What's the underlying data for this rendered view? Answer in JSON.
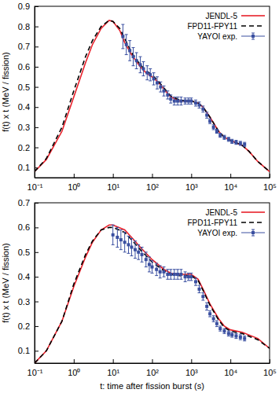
{
  "chart_data": [
    {
      "type": "line",
      "log": "x",
      "legend": "upper right",
      "y_label": "f(t) x t (MeV / fission)",
      "xlim": [
        0.1,
        100000
      ],
      "ylim": [
        0.05,
        0.9
      ],
      "xticks": [
        {
          "value": 0.1,
          "label": "10⁻¹"
        },
        {
          "value": 1,
          "label": "10⁰"
        },
        {
          "value": 10,
          "label": "10¹"
        },
        {
          "value": 100,
          "label": "10²"
        },
        {
          "value": 1000,
          "label": "10³"
        },
        {
          "value": 10000,
          "label": "10⁴"
        },
        {
          "value": 100000,
          "label": "10⁵"
        }
      ],
      "yticks": [
        0.1,
        0.2,
        0.3,
        0.4,
        0.5,
        0.6,
        0.7,
        0.8,
        0.9
      ],
      "series": [
        {
          "name": "JENDL-5",
          "type": "line",
          "color": "#e8202a",
          "line_style": "solid",
          "x": [
            0.1,
            0.2,
            0.5,
            1,
            2,
            3,
            5,
            8,
            10,
            15,
            20,
            30,
            50,
            70,
            100,
            150,
            200,
            300,
            500,
            700,
            1000,
            1500,
            2000,
            3000,
            5000,
            7000,
            10000,
            20000,
            30000,
            50000,
            100000
          ],
          "values": [
            0.08,
            0.14,
            0.28,
            0.45,
            0.62,
            0.71,
            0.79,
            0.83,
            0.825,
            0.78,
            0.72,
            0.66,
            0.6,
            0.57,
            0.55,
            0.52,
            0.49,
            0.45,
            0.43,
            0.43,
            0.43,
            0.42,
            0.4,
            0.35,
            0.28,
            0.25,
            0.235,
            0.21,
            0.18,
            0.13,
            0.08
          ]
        },
        {
          "name": "FPD11-FPY11",
          "type": "line",
          "color": "#000000",
          "line_style": "dashed",
          "x": [
            0.1,
            0.2,
            0.5,
            1,
            2,
            3,
            5,
            8,
            10,
            15,
            20,
            30,
            50,
            70,
            100,
            150,
            200,
            300,
            500,
            700,
            1000,
            1500,
            2000,
            3000,
            5000,
            7000,
            10000,
            20000,
            30000,
            50000,
            100000
          ],
          "values": [
            0.08,
            0.145,
            0.3,
            0.48,
            0.65,
            0.73,
            0.8,
            0.83,
            0.825,
            0.79,
            0.74,
            0.67,
            0.61,
            0.58,
            0.56,
            0.525,
            0.495,
            0.455,
            0.435,
            0.43,
            0.43,
            0.42,
            0.4,
            0.35,
            0.28,
            0.25,
            0.235,
            0.21,
            0.18,
            0.13,
            0.08
          ]
        },
        {
          "name": "YAYOI exp.",
          "type": "scatter",
          "color": "#3a4fa0",
          "marker": "square",
          "x": [
            18,
            22,
            27,
            33,
            40,
            50,
            60,
            75,
            90,
            110,
            135,
            165,
            200,
            250,
            300,
            370,
            450,
            550,
            700,
            850,
            1000,
            1300,
            1600,
            2000,
            2500,
            3000,
            3700,
            4500,
            5500,
            7000,
            9000,
            11000,
            14000,
            18000,
            23000
          ],
          "values": [
            0.75,
            0.71,
            0.68,
            0.65,
            0.63,
            0.61,
            0.59,
            0.57,
            0.56,
            0.54,
            0.52,
            0.5,
            0.48,
            0.46,
            0.44,
            0.43,
            0.43,
            0.43,
            0.43,
            0.43,
            0.43,
            0.42,
            0.41,
            0.39,
            0.36,
            0.33,
            0.3,
            0.28,
            0.26,
            0.25,
            0.24,
            0.23,
            0.225,
            0.22,
            0.215
          ],
          "errors": [
            0.06,
            0.05,
            0.05,
            0.045,
            0.04,
            0.04,
            0.035,
            0.035,
            0.03,
            0.03,
            0.03,
            0.025,
            0.025,
            0.02,
            0.02,
            0.02,
            0.02,
            0.02,
            0.015,
            0.015,
            0.015,
            0.015,
            0.015,
            0.015,
            0.015,
            0.012,
            0.012,
            0.01,
            0.01,
            0.01,
            0.01,
            0.01,
            0.01,
            0.01,
            0.01
          ]
        }
      ]
    },
    {
      "type": "line",
      "log": "x",
      "legend": "upper right",
      "x_label": "t: time after fission burst (s)",
      "y_label": "f(t) x t (MeV / fission)",
      "xlim": [
        0.1,
        100000
      ],
      "ylim": [
        0.05,
        0.7
      ],
      "xticks": [
        {
          "value": 0.1,
          "label": "10⁻¹"
        },
        {
          "value": 1,
          "label": "10⁰"
        },
        {
          "value": 10,
          "label": "10¹"
        },
        {
          "value": 100,
          "label": "10²"
        },
        {
          "value": 1000,
          "label": "10³"
        },
        {
          "value": 10000,
          "label": "10⁴"
        },
        {
          "value": 100000,
          "label": "10⁵"
        }
      ],
      "yticks": [
        0.1,
        0.2,
        0.3,
        0.4,
        0.5,
        0.6,
        0.7
      ],
      "series": [
        {
          "name": "JENDL-5",
          "type": "line",
          "color": "#e8202a",
          "line_style": "solid",
          "x": [
            0.1,
            0.2,
            0.5,
            1,
            2,
            3,
            5,
            8,
            10,
            20,
            30,
            50,
            100,
            200,
            300,
            500,
            1000,
            1500,
            2000,
            3000,
            5000,
            7000,
            10000,
            20000,
            50000,
            100000
          ],
          "values": [
            0.05,
            0.1,
            0.22,
            0.36,
            0.48,
            0.54,
            0.59,
            0.61,
            0.61,
            0.59,
            0.56,
            0.52,
            0.47,
            0.43,
            0.415,
            0.41,
            0.41,
            0.39,
            0.35,
            0.29,
            0.23,
            0.2,
            0.185,
            0.175,
            0.15,
            0.11
          ]
        },
        {
          "name": "FPD11-FPY11",
          "type": "line",
          "color": "#000000",
          "line_style": "dashed",
          "x": [
            0.1,
            0.2,
            0.5,
            1,
            2,
            3,
            5,
            8,
            10,
            20,
            30,
            50,
            100,
            200,
            300,
            500,
            1000,
            1500,
            2000,
            3000,
            5000,
            7000,
            10000,
            20000,
            50000,
            100000
          ],
          "values": [
            0.05,
            0.1,
            0.22,
            0.37,
            0.49,
            0.545,
            0.59,
            0.6,
            0.6,
            0.58,
            0.55,
            0.51,
            0.46,
            0.425,
            0.41,
            0.405,
            0.405,
            0.385,
            0.345,
            0.285,
            0.225,
            0.195,
            0.18,
            0.17,
            0.145,
            0.11
          ]
        },
        {
          "name": "YAYOI exp.",
          "type": "scatter",
          "color": "#3a4fa0",
          "marker": "square",
          "x": [
            10,
            13,
            16,
            20,
            25,
            30,
            37,
            45,
            55,
            70,
            85,
            100,
            130,
            160,
            200,
            250,
            300,
            370,
            450,
            550,
            700,
            850,
            1000,
            1300,
            1600,
            2000,
            2500,
            3000,
            3700,
            4500,
            5500,
            7000,
            9000,
            11000,
            14000,
            18000,
            23000
          ],
          "values": [
            0.57,
            0.56,
            0.55,
            0.54,
            0.53,
            0.52,
            0.51,
            0.5,
            0.49,
            0.47,
            0.45,
            0.44,
            0.43,
            0.42,
            0.42,
            0.41,
            0.41,
            0.41,
            0.41,
            0.41,
            0.4,
            0.4,
            0.4,
            0.38,
            0.35,
            0.32,
            0.28,
            0.25,
            0.23,
            0.21,
            0.19,
            0.18,
            0.17,
            0.165,
            0.16,
            0.155,
            0.15
          ],
          "errors": [
            0.04,
            0.04,
            0.04,
            0.04,
            0.035,
            0.035,
            0.035,
            0.03,
            0.03,
            0.03,
            0.03,
            0.025,
            0.025,
            0.025,
            0.02,
            0.02,
            0.02,
            0.02,
            0.02,
            0.02,
            0.02,
            0.015,
            0.015,
            0.015,
            0.015,
            0.015,
            0.015,
            0.012,
            0.012,
            0.012,
            0.01,
            0.01,
            0.01,
            0.01,
            0.01,
            0.01,
            0.01
          ]
        }
      ]
    }
  ]
}
